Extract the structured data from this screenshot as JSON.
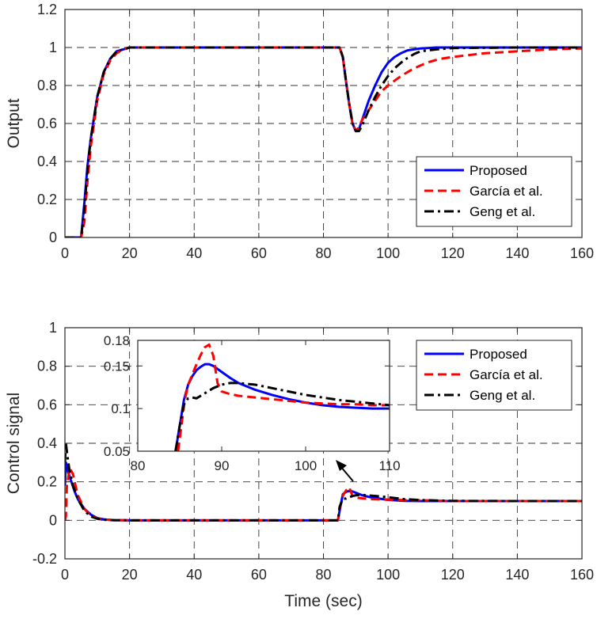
{
  "chart_data": [
    {
      "type": "line",
      "title": "",
      "xlabel": "",
      "ylabel": "Output",
      "xlim": [
        0,
        160
      ],
      "ylim": [
        0,
        1.2
      ],
      "xticks": [
        "0",
        "20",
        "40",
        "60",
        "80",
        "100",
        "120",
        "140",
        "160"
      ],
      "yticks": [
        "0",
        "0.2",
        "0.4",
        "0.6",
        "0.8",
        "1",
        "1.2"
      ],
      "grid": true,
      "legend_position": "bottom-right",
      "series": [
        {
          "name": "Proposed",
          "color": "#0000ff",
          "dash": "solid",
          "x": [
            0,
            4,
            5,
            6,
            7,
            8,
            10,
            12,
            14,
            16,
            18,
            20,
            25,
            30,
            40,
            60,
            80,
            85,
            86,
            87,
            88,
            89,
            90,
            91,
            92,
            94,
            96,
            98,
            100,
            102,
            104,
            106,
            108,
            110,
            115,
            120,
            140,
            160
          ],
          "y": [
            0,
            0,
            0,
            0.18,
            0.38,
            0.52,
            0.74,
            0.87,
            0.94,
            0.98,
            0.99,
            1,
            1,
            1,
            1,
            1,
            1,
            1,
            0.95,
            0.82,
            0.7,
            0.6,
            0.56,
            0.57,
            0.62,
            0.72,
            0.8,
            0.87,
            0.92,
            0.95,
            0.97,
            0.985,
            0.99,
            0.995,
            1,
            1,
            1,
            1
          ]
        },
        {
          "name": "García et al.",
          "color": "#ff0000",
          "dash": "dashed",
          "x": [
            0,
            4,
            5,
            6,
            7,
            8,
            10,
            12,
            14,
            16,
            18,
            20,
            25,
            30,
            40,
            60,
            80,
            85,
            86,
            87,
            88,
            89,
            90,
            91,
            92,
            94,
            96,
            98,
            100,
            104,
            108,
            112,
            116,
            120,
            130,
            140,
            150,
            160
          ],
          "y": [
            0,
            0,
            0,
            0.08,
            0.3,
            0.48,
            0.72,
            0.86,
            0.93,
            0.97,
            0.99,
            1,
            1,
            1,
            1,
            1,
            1,
            1,
            0.95,
            0.82,
            0.7,
            0.6,
            0.56,
            0.58,
            0.62,
            0.67,
            0.72,
            0.77,
            0.8,
            0.85,
            0.89,
            0.92,
            0.94,
            0.95,
            0.97,
            0.98,
            0.99,
            0.995
          ]
        },
        {
          "name": "Geng et al.",
          "color": "#000000",
          "dash": "dashdot",
          "x": [
            0,
            4,
            5,
            6,
            7,
            8,
            10,
            12,
            14,
            16,
            18,
            20,
            25,
            30,
            40,
            60,
            80,
            85,
            86,
            87,
            88,
            89,
            90,
            91,
            92,
            94,
            96,
            98,
            100,
            102,
            104,
            106,
            108,
            110,
            115,
            120,
            140,
            160
          ],
          "y": [
            0,
            0,
            0,
            0.15,
            0.36,
            0.52,
            0.74,
            0.87,
            0.94,
            0.98,
            0.99,
            1,
            1,
            1,
            1,
            1,
            1,
            1,
            0.95,
            0.82,
            0.7,
            0.6,
            0.56,
            0.56,
            0.59,
            0.67,
            0.74,
            0.8,
            0.85,
            0.89,
            0.92,
            0.945,
            0.965,
            0.98,
            0.99,
            0.997,
            1,
            1
          ]
        }
      ]
    },
    {
      "type": "line",
      "title": "",
      "xlabel": "Time (sec)",
      "ylabel": "Control signal",
      "xlim": [
        0,
        160
      ],
      "ylim": [
        -0.2,
        1
      ],
      "xticks": [
        "0",
        "20",
        "40",
        "60",
        "80",
        "100",
        "120",
        "140",
        "160"
      ],
      "yticks": [
        "-0.2",
        "0",
        "0.2",
        "0.4",
        "0.6",
        "0.8",
        "1"
      ],
      "grid": true,
      "legend_position": "top-right",
      "series": [
        {
          "name": "Proposed",
          "color": "#0000ff",
          "dash": "solid",
          "x": [
            0,
            0.3,
            1,
            2,
            3,
            4,
            6,
            8,
            10,
            12,
            15,
            20,
            40,
            60,
            84.5,
            85,
            86,
            87,
            88,
            89,
            90,
            92,
            95,
            100,
            105,
            110,
            120,
            140,
            160
          ],
          "y": [
            0.18,
            0.3,
            0.25,
            0.2,
            0.15,
            0.11,
            0.06,
            0.03,
            0.012,
            0.005,
            0.001,
            0,
            0,
            0,
            0,
            0.05,
            0.135,
            0.148,
            0.152,
            0.15,
            0.143,
            0.13,
            0.118,
            0.106,
            0.101,
            0.1,
            0.1,
            0.1,
            0.1
          ]
        },
        {
          "name": "García et al.",
          "color": "#ff0000",
          "dash": "dashed",
          "x": [
            0,
            0.3,
            0.6,
            1.5,
            2.5,
            3,
            4,
            6,
            8,
            10,
            12,
            15,
            20,
            40,
            60,
            84.5,
            85,
            86,
            87,
            88,
            89,
            90,
            92,
            95,
            100,
            105,
            110,
            120,
            140,
            160
          ],
          "y": [
            0,
            0.02,
            0.18,
            0.27,
            0.24,
            0.2,
            0.13,
            0.06,
            0.025,
            0.01,
            0.004,
            0.001,
            0,
            0,
            0,
            0,
            0.06,
            0.128,
            0.155,
            0.172,
            0.125,
            0.118,
            0.114,
            0.11,
            0.107,
            0.105,
            0.104,
            0.1,
            0.1,
            0.1
          ]
        },
        {
          "name": "Geng et al.",
          "color": "#000000",
          "dash": "dashdot",
          "x": [
            0,
            0.3,
            0.8,
            1.5,
            2.5,
            4,
            6,
            8,
            10,
            12,
            15,
            20,
            40,
            60,
            84.5,
            85,
            86,
            87,
            88,
            89,
            90,
            92,
            95,
            100,
            105,
            110,
            120,
            140,
            160
          ],
          "y": [
            0.3,
            0.4,
            0.33,
            0.25,
            0.18,
            0.11,
            0.05,
            0.02,
            0.008,
            0.003,
            0.001,
            0,
            0,
            0,
            0,
            0.07,
            0.112,
            0.113,
            0.12,
            0.126,
            0.13,
            0.132,
            0.128,
            0.12,
            0.11,
            0.105,
            0.101,
            0.1,
            0.1
          ]
        }
      ]
    },
    {
      "type": "line",
      "title": "",
      "xlabel": "",
      "ylabel": "",
      "xlim": [
        80,
        110
      ],
      "ylim": [
        0.05,
        0.18
      ],
      "xticks": [
        "80",
        "90",
        "100",
        "110"
      ],
      "yticks": [
        "0.05",
        "0.1",
        "0.15",
        "0.18"
      ],
      "grid": false,
      "series": [
        {
          "color": "#0000ff",
          "dash": "solid",
          "x": [
            84.5,
            85,
            85.5,
            86,
            86.5,
            87,
            87.5,
            88,
            88.5,
            89,
            90,
            91,
            92,
            94,
            96,
            98,
            100,
            102,
            104,
            106,
            108,
            110
          ],
          "y": [
            0.05,
            0.08,
            0.11,
            0.128,
            0.138,
            0.145,
            0.149,
            0.152,
            0.152,
            0.15,
            0.143,
            0.136,
            0.13,
            0.122,
            0.116,
            0.111,
            0.107,
            0.104,
            0.102,
            0.101,
            0.1,
            0.1
          ]
        },
        {
          "color": "#ff0000",
          "dash": "dashed",
          "x": [
            84.8,
            85.2,
            85.6,
            86,
            86.5,
            87,
            87.5,
            88,
            88.5,
            89,
            89.5,
            90,
            91,
            92,
            94,
            96,
            98,
            100,
            102,
            104,
            106,
            108,
            110
          ],
          "y": [
            0.05,
            0.08,
            0.11,
            0.128,
            0.14,
            0.152,
            0.163,
            0.172,
            0.175,
            0.162,
            0.13,
            0.12,
            0.117,
            0.115,
            0.113,
            0.111,
            0.109,
            0.107,
            0.106,
            0.105,
            0.105,
            0.104,
            0.104
          ]
        },
        {
          "color": "#000000",
          "dash": "dashdot",
          "x": [
            84.5,
            85,
            85.5,
            86,
            86.5,
            87,
            88,
            89,
            90,
            91,
            92,
            94,
            96,
            98,
            100,
            102,
            104,
            106,
            108,
            110
          ],
          "y": [
            0.05,
            0.08,
            0.105,
            0.112,
            0.113,
            0.112,
            0.118,
            0.124,
            0.128,
            0.13,
            0.13,
            0.128,
            0.124,
            0.12,
            0.116,
            0.113,
            0.11,
            0.108,
            0.106,
            0.104
          ]
        }
      ]
    }
  ],
  "legend": {
    "items": [
      {
        "label": "Proposed",
        "color": "#0000ff",
        "dash": "solid"
      },
      {
        "label": "García et al.",
        "color": "#ff0000",
        "dash": "dashed"
      },
      {
        "label": "Geng et al.",
        "color": "#000000",
        "dash": "dashdot"
      }
    ]
  }
}
